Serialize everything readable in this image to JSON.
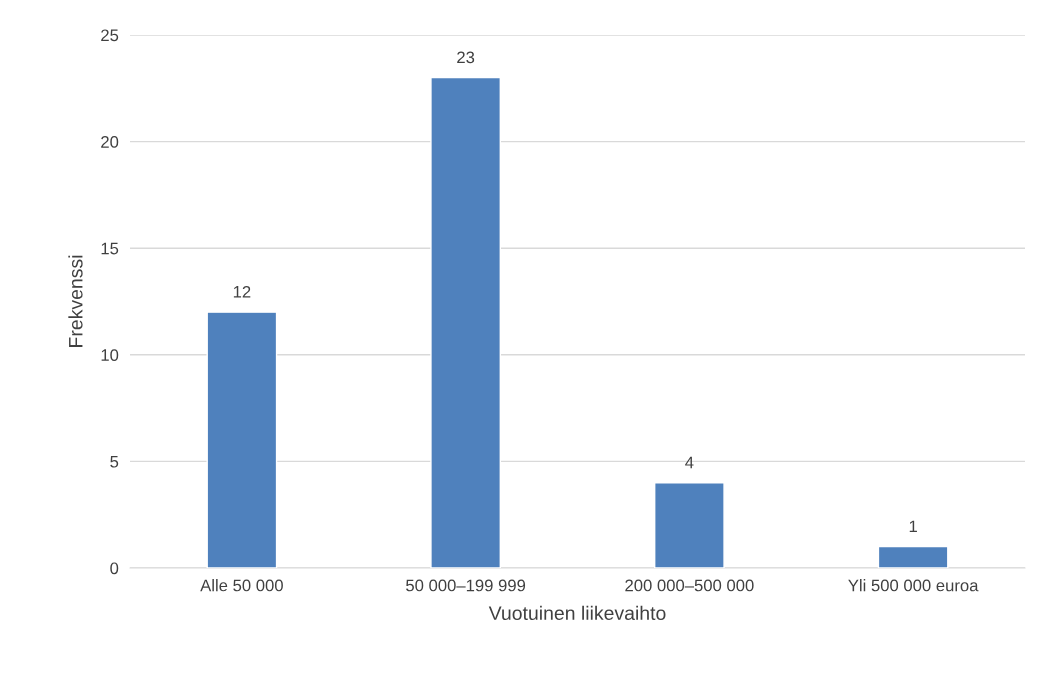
{
  "chart_data": {
    "type": "bar",
    "xlabel": "Vuotuinen liikevaihto",
    "ylabel": "Frekvenssi",
    "categories": [
      "Alle 50 000",
      "50 000–199 999",
      "200 000–500 000",
      "Yli 500 000 euroa"
    ],
    "values": [
      12,
      23,
      4,
      1
    ],
    "color": "#4f81bd",
    "ylim": [
      0,
      25
    ],
    "yticks": [
      0,
      5,
      10,
      15,
      20,
      25
    ],
    "grid": "y",
    "data_labels": true,
    "legend": false
  }
}
